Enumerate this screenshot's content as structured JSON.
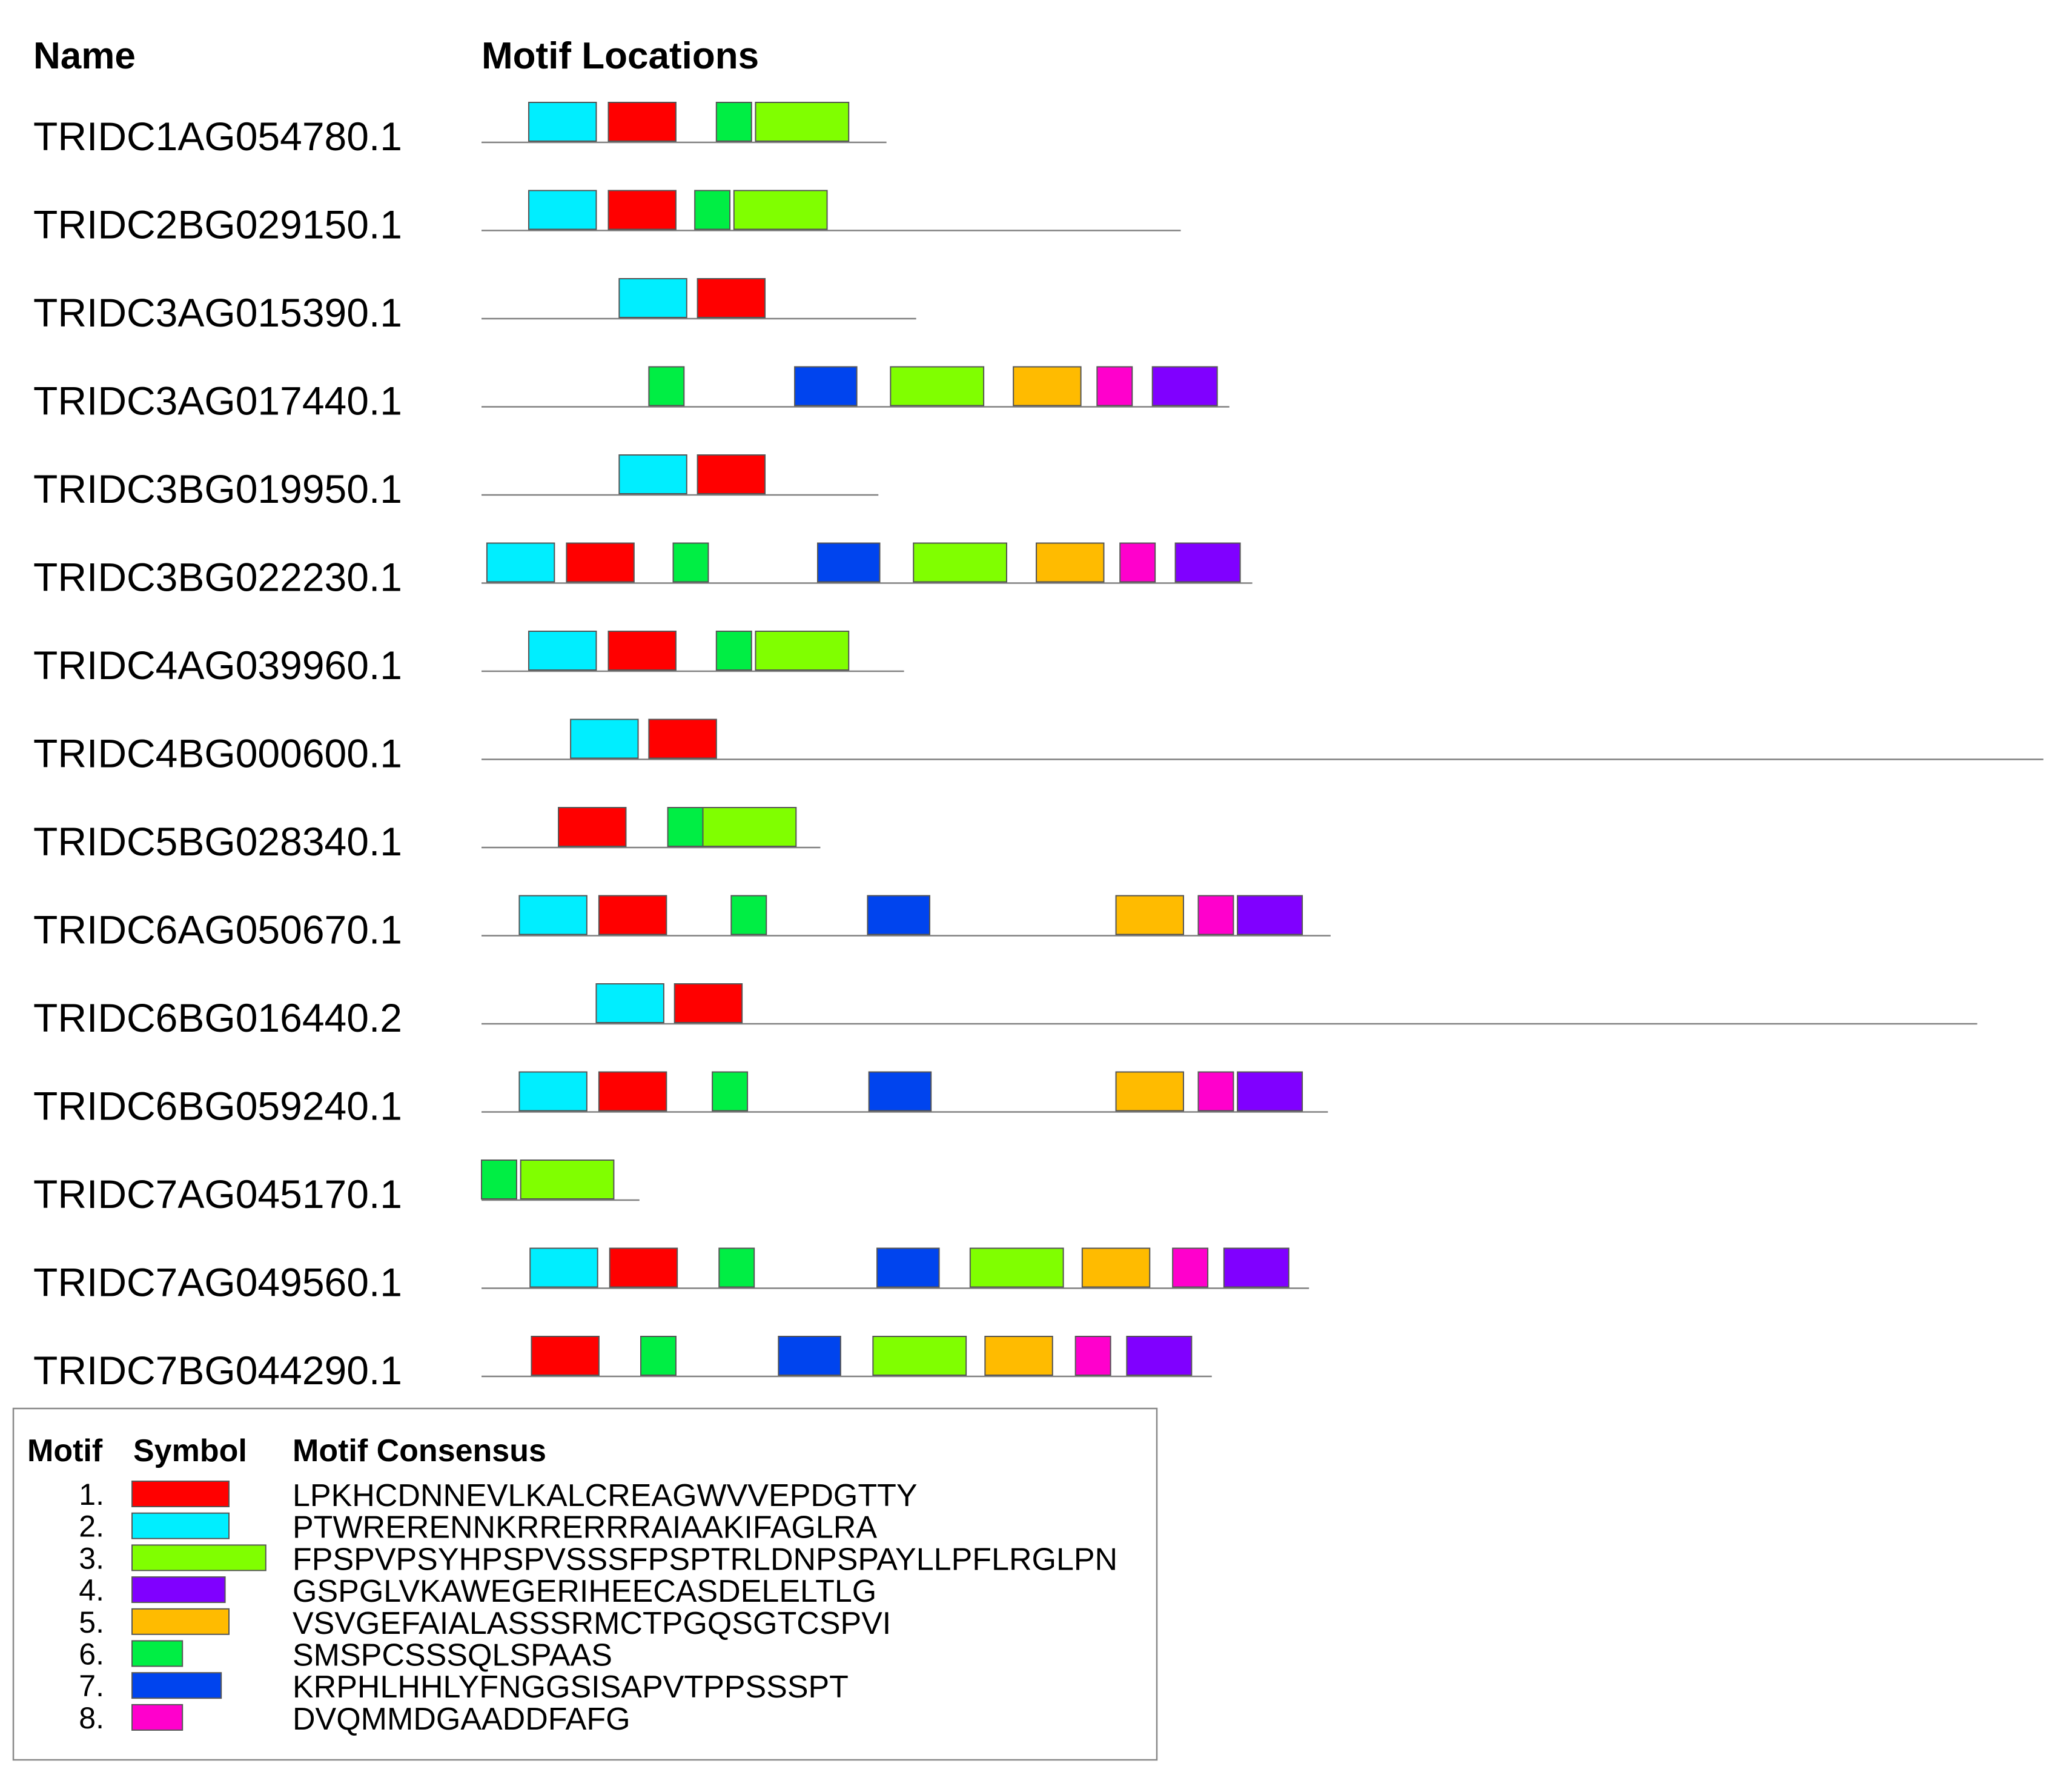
{
  "headers": {
    "name": "Name",
    "motif_locations": "Motif Locations"
  },
  "motif_colors": {
    "1": "#ff0000",
    "2": "#00eeff",
    "3": "#80ff00",
    "4": "#8000ff",
    "5": "#ffbb00",
    "6": "#00ee44",
    "7": "#0044ee",
    "8": "#ff00cc"
  },
  "sequences": [
    {
      "name": "TRIDC1AG054780.1",
      "length": 300,
      "motifs": [
        {
          "motif": 2,
          "start": 35,
          "end": 85
        },
        {
          "motif": 1,
          "start": 94,
          "end": 144
        },
        {
          "motif": 6,
          "start": 174,
          "end": 200
        },
        {
          "motif": 3,
          "start": 203,
          "end": 272
        }
      ]
    },
    {
      "name": "TRIDC2BG029150.1",
      "length": 518,
      "motifs": [
        {
          "motif": 2,
          "start": 35,
          "end": 85
        },
        {
          "motif": 1,
          "start": 94,
          "end": 144
        },
        {
          "motif": 6,
          "start": 158,
          "end": 184
        },
        {
          "motif": 3,
          "start": 187,
          "end": 256
        }
      ]
    },
    {
      "name": "TRIDC3AG015390.1",
      "length": 322,
      "motifs": [
        {
          "motif": 2,
          "start": 102,
          "end": 152
        },
        {
          "motif": 1,
          "start": 160,
          "end": 210
        }
      ]
    },
    {
      "name": "TRIDC3AG017440.1",
      "length": 554,
      "motifs": [
        {
          "motif": 6,
          "start": 124,
          "end": 150
        },
        {
          "motif": 7,
          "start": 232,
          "end": 278
        },
        {
          "motif": 3,
          "start": 303,
          "end": 372
        },
        {
          "motif": 5,
          "start": 394,
          "end": 444
        },
        {
          "motif": 8,
          "start": 456,
          "end": 482
        },
        {
          "motif": 4,
          "start": 497,
          "end": 545
        }
      ]
    },
    {
      "name": "TRIDC3BG019950.1",
      "length": 294,
      "motifs": [
        {
          "motif": 2,
          "start": 102,
          "end": 152
        },
        {
          "motif": 1,
          "start": 160,
          "end": 210
        }
      ]
    },
    {
      "name": "TRIDC3BG022230.1",
      "length": 571,
      "motifs": [
        {
          "motif": 2,
          "start": 4,
          "end": 54
        },
        {
          "motif": 1,
          "start": 63,
          "end": 113
        },
        {
          "motif": 6,
          "start": 142,
          "end": 168
        },
        {
          "motif": 7,
          "start": 249,
          "end": 295
        },
        {
          "motif": 3,
          "start": 320,
          "end": 389
        },
        {
          "motif": 5,
          "start": 411,
          "end": 461
        },
        {
          "motif": 8,
          "start": 473,
          "end": 499
        },
        {
          "motif": 4,
          "start": 514,
          "end": 562
        }
      ]
    },
    {
      "name": "TRIDC4AG039960.1",
      "length": 313,
      "motifs": [
        {
          "motif": 2,
          "start": 35,
          "end": 85
        },
        {
          "motif": 1,
          "start": 94,
          "end": 144
        },
        {
          "motif": 6,
          "start": 174,
          "end": 200
        },
        {
          "motif": 3,
          "start": 203,
          "end": 272
        }
      ]
    },
    {
      "name": "TRIDC4BG000600.1",
      "length": 1157,
      "motifs": [
        {
          "motif": 2,
          "start": 66,
          "end": 116
        },
        {
          "motif": 1,
          "start": 124,
          "end": 174
        }
      ]
    },
    {
      "name": "TRIDC5BG028340.1",
      "length": 251,
      "motifs": [
        {
          "motif": 1,
          "start": 57,
          "end": 107
        },
        {
          "motif": 6,
          "start": 138,
          "end": 164
        },
        {
          "motif": 3,
          "start": 164,
          "end": 233
        }
      ]
    },
    {
      "name": "TRIDC6AG050670.1",
      "length": 629,
      "motifs": [
        {
          "motif": 2,
          "start": 28,
          "end": 78
        },
        {
          "motif": 1,
          "start": 87,
          "end": 137
        },
        {
          "motif": 6,
          "start": 185,
          "end": 211
        },
        {
          "motif": 7,
          "start": 286,
          "end": 332
        },
        {
          "motif": 5,
          "start": 470,
          "end": 520
        },
        {
          "motif": 8,
          "start": 531,
          "end": 557
        },
        {
          "motif": 4,
          "start": 560,
          "end": 608
        }
      ]
    },
    {
      "name": "TRIDC6BG016440.2",
      "length": 1108,
      "motifs": [
        {
          "motif": 2,
          "start": 85,
          "end": 135
        },
        {
          "motif": 1,
          "start": 143,
          "end": 193
        }
      ]
    },
    {
      "name": "TRIDC6BG059240.1",
      "length": 627,
      "motifs": [
        {
          "motif": 2,
          "start": 28,
          "end": 78
        },
        {
          "motif": 1,
          "start": 87,
          "end": 137
        },
        {
          "motif": 6,
          "start": 171,
          "end": 197
        },
        {
          "motif": 7,
          "start": 287,
          "end": 333
        },
        {
          "motif": 5,
          "start": 470,
          "end": 520
        },
        {
          "motif": 8,
          "start": 531,
          "end": 557
        },
        {
          "motif": 4,
          "start": 560,
          "end": 608
        }
      ]
    },
    {
      "name": "TRIDC7AG045170.1",
      "length": 117,
      "motifs": [
        {
          "motif": 6,
          "start": 0,
          "end": 26
        },
        {
          "motif": 3,
          "start": 29,
          "end": 98
        }
      ]
    },
    {
      "name": "TRIDC7AG049560.1",
      "length": 613,
      "motifs": [
        {
          "motif": 2,
          "start": 36,
          "end": 86
        },
        {
          "motif": 1,
          "start": 95,
          "end": 145
        },
        {
          "motif": 6,
          "start": 176,
          "end": 202
        },
        {
          "motif": 7,
          "start": 293,
          "end": 339
        },
        {
          "motif": 3,
          "start": 362,
          "end": 431
        },
        {
          "motif": 5,
          "start": 445,
          "end": 495
        },
        {
          "motif": 8,
          "start": 512,
          "end": 538
        },
        {
          "motif": 4,
          "start": 550,
          "end": 598
        }
      ]
    },
    {
      "name": "TRIDC7BG044290.1",
      "length": 541,
      "motifs": [
        {
          "motif": 1,
          "start": 37,
          "end": 87
        },
        {
          "motif": 6,
          "start": 118,
          "end": 144
        },
        {
          "motif": 7,
          "start": 220,
          "end": 266
        },
        {
          "motif": 3,
          "start": 290,
          "end": 359
        },
        {
          "motif": 5,
          "start": 373,
          "end": 423
        },
        {
          "motif": 8,
          "start": 440,
          "end": 466
        },
        {
          "motif": 4,
          "start": 478,
          "end": 526
        }
      ]
    }
  ],
  "legend": {
    "headers": {
      "motif": "Motif",
      "symbol": "Symbol",
      "consensus": "Motif Consensus"
    },
    "items": [
      {
        "number": "1.",
        "motif": 1,
        "width": 50,
        "consensus": "LPKHCDNNEVLKALCREAGWVVEPDGTTY"
      },
      {
        "number": "2.",
        "motif": 2,
        "width": 50,
        "consensus": "PTWRERENNKRRERRRAIAAKIFAGLRA"
      },
      {
        "number": "3.",
        "motif": 3,
        "width": 69,
        "consensus": "FPSPVPSYHPSPVSSSFPSPTRLDNPSPAYLLPFLRGLPN"
      },
      {
        "number": "4.",
        "motif": 4,
        "width": 48,
        "consensus": "GSPGLVKAWEGERIHEECASDELELTLG"
      },
      {
        "number": "5.",
        "motif": 5,
        "width": 50,
        "consensus": "VSVGEFAIALASSSRMCTPGQSGTCSPVI"
      },
      {
        "number": "6.",
        "motif": 6,
        "width": 26,
        "consensus": "SMSPCSSSQLSPAAS"
      },
      {
        "number": "7.",
        "motif": 7,
        "width": 46,
        "consensus": "KRPHLHHLYFNGGSISAPVTPPSSSPT"
      },
      {
        "number": "8.",
        "motif": 8,
        "width": 26,
        "consensus": "DVQMMDGAADDFAFG"
      }
    ]
  }
}
